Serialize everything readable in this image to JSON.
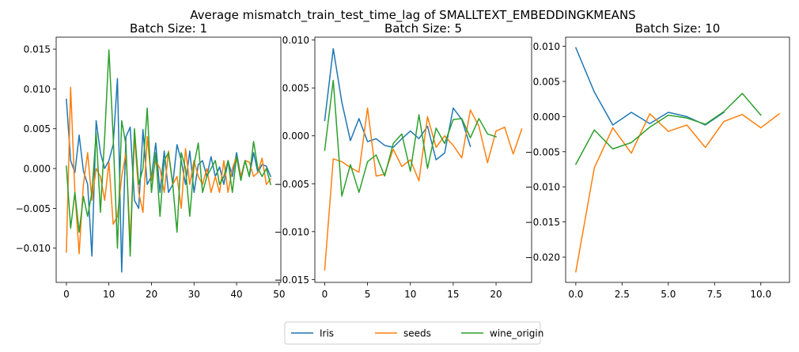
{
  "figure": {
    "suptitle": "Average mismatch_train_test_time_lag of SMALLTEXT_EMBEDDINGKMEANS"
  },
  "legend": {
    "items": [
      {
        "label": "Iris",
        "color": "#1f77b4"
      },
      {
        "label": "seeds",
        "color": "#ff7f0e"
      },
      {
        "label": "wine_origin",
        "color": "#2ca02c"
      }
    ],
    "placement": "bottom-center"
  },
  "chart_data": [
    {
      "type": "line",
      "title": "Batch Size: 1",
      "xlabel": "",
      "ylabel": "",
      "xlim": [
        -2.4,
        50.4
      ],
      "ylim": [
        -0.0143,
        0.0165
      ],
      "xticks": [
        0,
        10,
        20,
        30,
        40,
        50
      ],
      "xtick_labels": [
        "0",
        "10",
        "20",
        "30",
        "40",
        "50"
      ],
      "yticks": [
        -0.01,
        -0.005,
        0.0,
        0.005,
        0.01,
        0.015
      ],
      "ytick_labels": [
        "−0.010",
        "−0.005",
        "0.000",
        "0.005",
        "0.010",
        "0.015"
      ],
      "grid": false,
      "series": [
        {
          "name": "Iris",
          "color": "#1f77b4",
          "x": [
            0,
            1,
            2,
            3,
            4,
            5,
            6,
            7,
            8,
            9,
            10,
            11,
            12,
            13,
            14,
            15,
            16,
            17,
            18,
            19,
            20,
            21,
            22,
            23,
            24,
            25,
            26,
            27,
            28,
            29,
            30,
            31,
            32,
            33,
            34,
            35,
            36,
            37,
            38,
            39,
            40,
            41,
            42,
            43,
            44,
            45,
            46,
            47,
            48
          ],
          "y": [
            0.0087,
            0.001,
            -0.0005,
            0.0042,
            -0.0003,
            -0.002,
            -0.011,
            0.006,
            0.002,
            0.0,
            0.001,
            0.003,
            0.0113,
            -0.013,
            0.004,
            0.0052,
            -0.004,
            -0.005,
            0.0049,
            -0.002,
            -0.001,
            0.0032,
            -0.003,
            0.0022,
            -0.003,
            -0.002,
            0.003,
            0.001,
            -0.002,
            0.0022,
            -0.003,
            0.0005,
            0.001,
            -0.001,
            0.0015,
            -0.001,
            0.0002,
            -0.002,
            0.001,
            -0.001,
            0.002,
            -0.001,
            0.001,
            -0.001,
            0.002,
            -0.0005,
            0.0005,
            0.0003,
            -0.001
          ]
        },
        {
          "name": "seeds",
          "color": "#ff7f0e",
          "x": [
            0,
            1,
            2,
            3,
            4,
            5,
            6,
            7,
            8,
            9,
            10,
            11,
            12,
            13,
            14,
            15,
            16,
            17,
            18,
            19,
            20,
            21,
            22,
            23,
            24,
            25,
            26,
            27,
            28,
            29,
            30,
            31,
            32,
            33,
            34,
            35,
            36,
            37,
            38,
            39,
            40,
            41,
            42,
            43,
            44,
            45,
            46,
            47,
            48
          ],
          "y": [
            -0.0105,
            0.0102,
            -0.003,
            -0.0107,
            -0.002,
            0.002,
            -0.004,
            0.0,
            -0.001,
            -0.004,
            0.0008,
            -0.007,
            -0.006,
            -0.001,
            0.002,
            -0.009,
            0.004,
            -0.003,
            -0.0055,
            0.004,
            -0.0015,
            0.001,
            0.0,
            -0.003,
            0.0022,
            -0.002,
            -0.001,
            -0.005,
            0.0025,
            -0.002,
            0.001,
            -0.001,
            -0.002,
            0.0,
            -0.003,
            -0.001,
            -0.003,
            0.001,
            -0.003,
            0.0,
            0.0015,
            -0.001,
            0.001,
            0.0008,
            -0.001,
            -0.0005,
            0.0013,
            -0.002,
            -0.0013
          ]
        },
        {
          "name": "wine_origin",
          "color": "#2ca02c",
          "x": [
            0,
            1,
            2,
            3,
            4,
            5,
            6,
            7,
            8,
            9,
            10,
            11,
            12,
            13,
            14,
            15,
            16,
            17,
            18,
            19,
            20,
            21,
            22,
            23,
            24,
            25,
            26,
            27,
            28,
            29,
            30,
            31,
            32,
            33,
            34,
            35,
            36,
            37,
            38,
            39,
            40,
            41,
            42,
            43,
            44,
            45,
            46,
            47,
            48
          ],
          "y": [
            0.0003,
            -0.0075,
            -0.003,
            -0.008,
            -0.0035,
            -0.006,
            -0.003,
            0.0045,
            -0.0055,
            0.004,
            0.0149,
            0.004,
            -0.01,
            0.006,
            0.003,
            -0.011,
            0.005,
            -0.002,
            0.0,
            0.0076,
            -0.003,
            0.002,
            -0.006,
            0.001,
            0.002,
            -0.002,
            -0.008,
            0.002,
            0.0,
            -0.006,
            0.0005,
            0.0032,
            -0.003,
            -0.001,
            0.0,
            0.001,
            -0.002,
            -0.001,
            0.001,
            -0.003,
            0.0015,
            -0.0015,
            0.001,
            -0.001,
            0.0034,
            0.0,
            -0.001,
            0.0,
            -0.002
          ]
        }
      ]
    },
    {
      "type": "line",
      "title": "Batch Size: 5",
      "xlabel": "",
      "ylabel": "",
      "xlim": [
        -1.15,
        24.15
      ],
      "ylim": [
        -0.0153,
        0.0103
      ],
      "xticks": [
        0,
        5,
        10,
        15,
        20
      ],
      "xtick_labels": [
        "0",
        "5",
        "10",
        "15",
        "20"
      ],
      "yticks": [
        -0.015,
        -0.01,
        -0.005,
        0.0,
        0.005,
        0.01
      ],
      "ytick_labels": [
        "−0.015",
        "−0.010",
        "−0.005",
        "0.000",
        "0.005",
        "0.010"
      ],
      "grid": false,
      "series": [
        {
          "name": "Iris",
          "color": "#1f77b4",
          "x": [
            0,
            1,
            2,
            3,
            4,
            5,
            6,
            7,
            8,
            9,
            10,
            11,
            12,
            13,
            14,
            15,
            16,
            17
          ],
          "y": [
            0.0016,
            0.0091,
            0.0035,
            -0.0005,
            0.0018,
            -0.0006,
            -0.0003,
            -0.001,
            -0.0012,
            -0.0003,
            0.0005,
            -0.0003,
            0.001,
            -0.0025,
            -0.0018,
            0.0029,
            0.0017,
            -0.0011
          ]
        },
        {
          "name": "seeds",
          "color": "#ff7f0e",
          "x": [
            0,
            1,
            2,
            3,
            4,
            5,
            6,
            7,
            8,
            9,
            10,
            11,
            12,
            13,
            14,
            15,
            16,
            17,
            18,
            19,
            20,
            21,
            22,
            23
          ],
          "y": [
            -0.014,
            -0.0024,
            -0.0027,
            -0.0033,
            -0.0038,
            0.0029,
            -0.0042,
            -0.004,
            -0.0014,
            -0.0032,
            -0.0025,
            -0.0047,
            0.002,
            -0.0012,
            0.0,
            -0.001,
            -0.0023,
            0.0027,
            0.001,
            -0.0028,
            0.0005,
            0.0009,
            -0.0019,
            0.0007
          ]
        },
        {
          "name": "wine_origin",
          "color": "#2ca02c",
          "x": [
            0,
            1,
            2,
            3,
            4,
            5,
            6,
            7,
            8,
            9,
            10,
            11,
            12,
            13,
            14,
            15,
            16,
            17,
            18,
            19,
            20
          ],
          "y": [
            -0.0015,
            0.0058,
            -0.0063,
            -0.003,
            -0.0059,
            -0.0027,
            -0.002,
            -0.0042,
            -0.0008,
            0.0002,
            -0.0037,
            0.0022,
            -0.0034,
            0.0008,
            -0.0008,
            0.0017,
            0.0018,
            -0.0002,
            0.0018,
            0.0002,
            -0.0001
          ]
        }
      ]
    },
    {
      "type": "line",
      "title": "Batch Size: 10",
      "xlabel": "",
      "ylabel": "",
      "xlim": [
        -0.55,
        11.55
      ],
      "ylim": [
        -0.0236,
        0.0113
      ],
      "xticks": [
        0,
        2.5,
        5,
        7.5,
        10
      ],
      "xtick_labels": [
        "0.0",
        "2.5",
        "5.0",
        "7.5",
        "10.0"
      ],
      "yticks": [
        -0.02,
        -0.015,
        -0.01,
        -0.005,
        0.0,
        0.005,
        0.01
      ],
      "ytick_labels": [
        "−0.020",
        "−0.015",
        "−0.010",
        "−0.005",
        "0.000",
        "0.005",
        "0.010"
      ],
      "grid": false,
      "series": [
        {
          "name": "Iris",
          "color": "#1f77b4",
          "x": [
            0,
            1,
            2,
            3,
            4,
            5,
            6,
            7,
            8
          ],
          "y": [
            0.0098,
            0.0035,
            -0.0012,
            0.0006,
            -0.001,
            0.0006,
            0.0,
            -0.0012,
            0.0006
          ]
        },
        {
          "name": "seeds",
          "color": "#ff7f0e",
          "x": [
            0,
            1,
            2,
            3,
            4,
            5,
            6,
            7,
            8,
            9,
            10,
            11
          ],
          "y": [
            -0.0221,
            -0.0073,
            -0.0016,
            -0.0052,
            0.0004,
            -0.0021,
            -0.0012,
            -0.0044,
            -0.0007,
            0.0003,
            -0.0016,
            0.0004
          ]
        },
        {
          "name": "wine_origin",
          "color": "#2ca02c",
          "x": [
            0,
            1,
            2,
            3,
            4,
            5,
            6,
            7,
            8,
            9,
            10
          ],
          "y": [
            -0.0068,
            -0.0019,
            -0.0046,
            -0.0037,
            -0.0015,
            0.0002,
            -0.0002,
            -0.0011,
            0.0007,
            0.0033,
            0.0002
          ]
        }
      ]
    }
  ]
}
